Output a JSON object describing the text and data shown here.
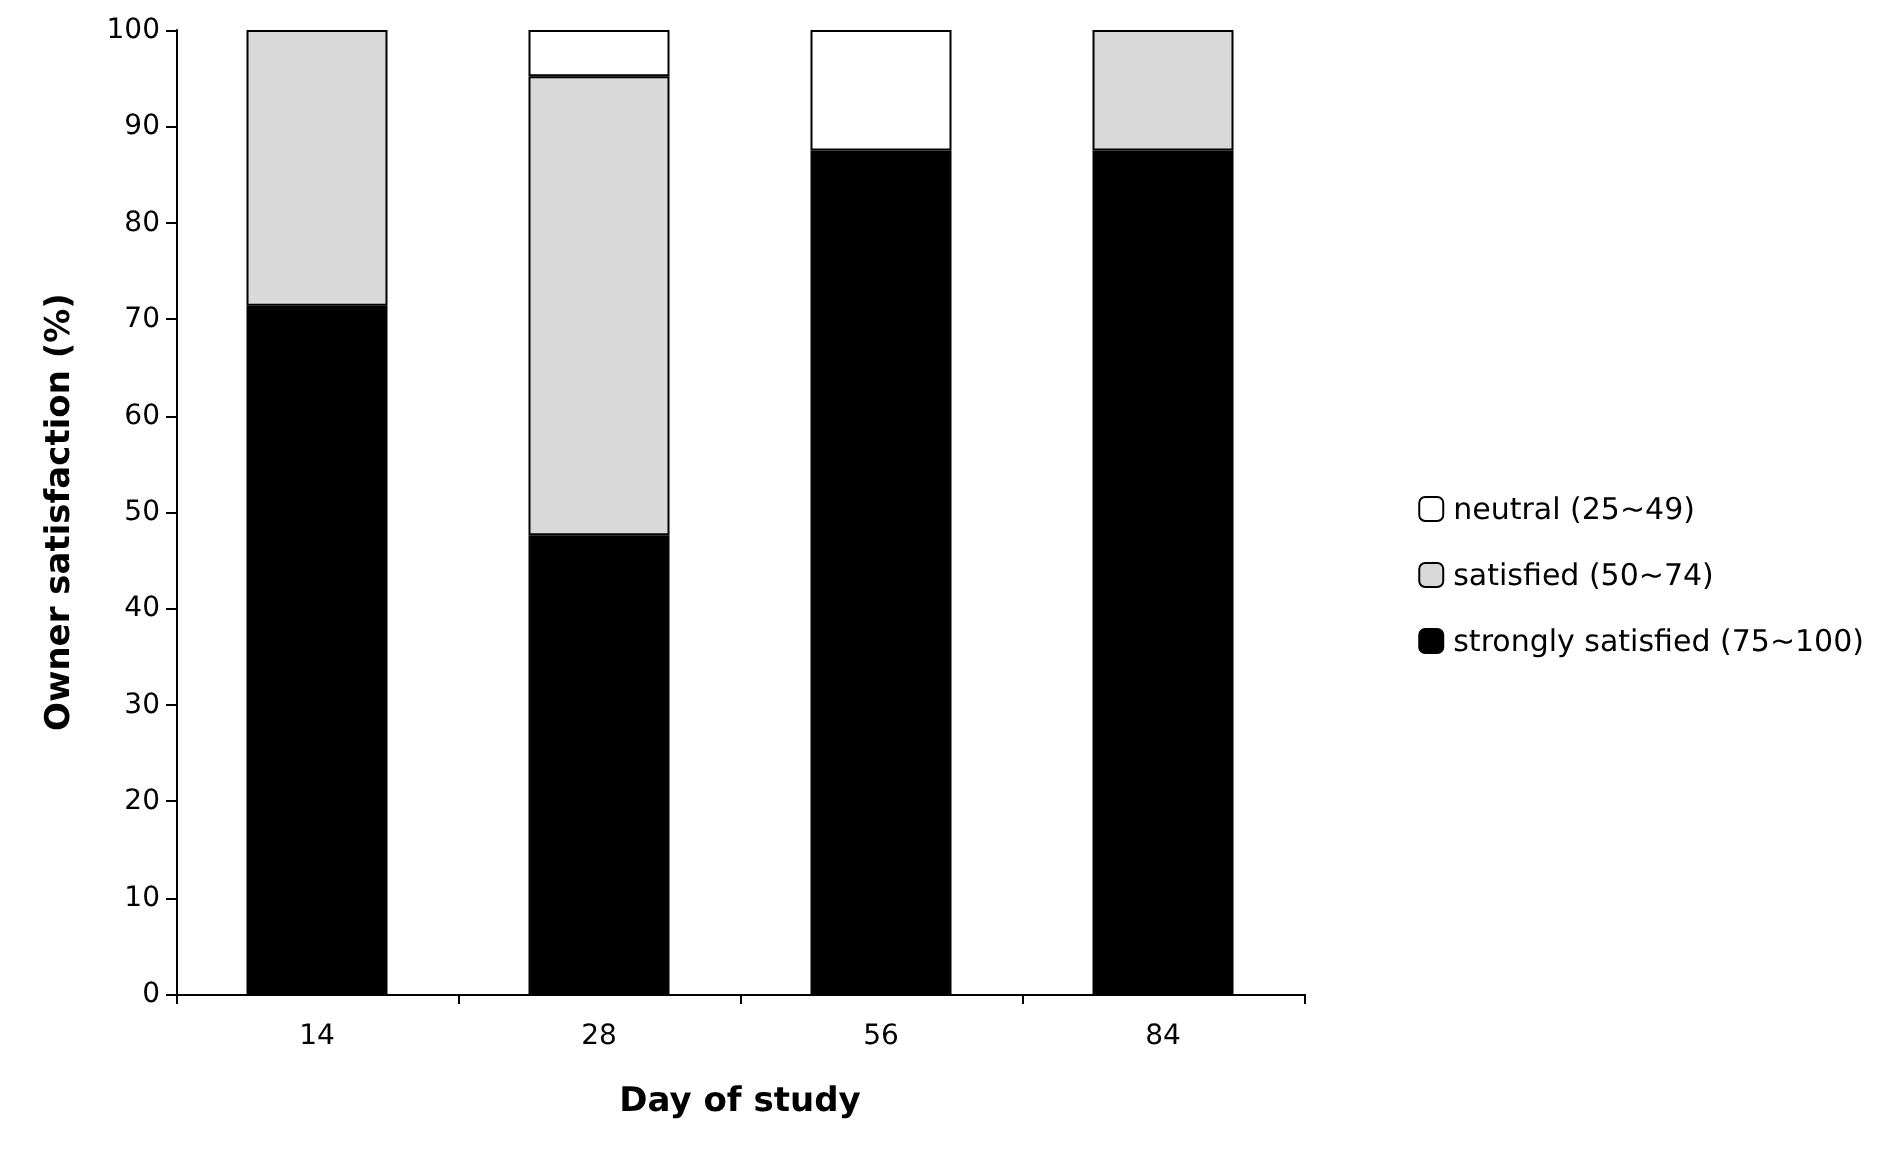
{
  "chart_data": {
    "type": "bar",
    "stacked": true,
    "xlabel": "Day of study",
    "ylabel": "Owner satisfaction (%)",
    "categories": [
      "14",
      "28",
      "56",
      "84"
    ],
    "series": [
      {
        "name": "strongly satisfied (75~100)",
        "color": "#000000",
        "values": [
          71.4,
          47.6,
          87.5,
          87.5
        ]
      },
      {
        "name": "satisfied (50~74)",
        "color": "#d9d9d9",
        "values": [
          28.6,
          47.6,
          0,
          12.5
        ]
      },
      {
        "name": "neutral (25~49)",
        "color": "#ffffff",
        "values": [
          0,
          4.8,
          12.5,
          0
        ]
      }
    ],
    "ylim": [
      0,
      100
    ],
    "yticks": [
      0,
      10,
      20,
      30,
      40,
      50,
      60,
      70,
      80,
      90,
      100
    ],
    "grid": false,
    "legend": "right"
  }
}
